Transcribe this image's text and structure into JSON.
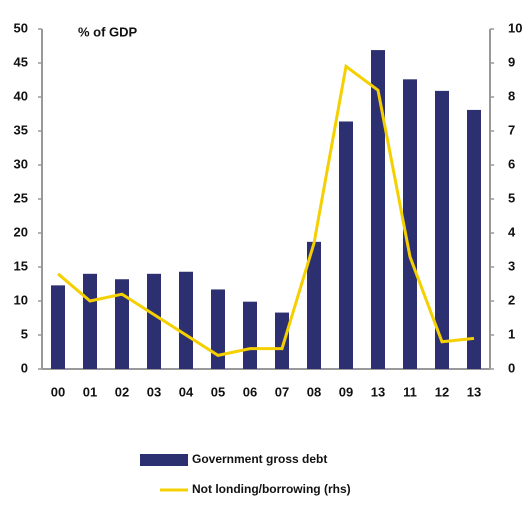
{
  "chart_data": {
    "type": "bar_line",
    "y_label": "% of GDP",
    "categories": [
      "00",
      "01",
      "02",
      "03",
      "04",
      "05",
      "06",
      "07",
      "08",
      "09",
      "13",
      "11",
      "12",
      "13"
    ],
    "series": [
      {
        "name": "Government gross debt",
        "type": "bar",
        "color": "#2d3070",
        "values": [
          12.3,
          14,
          13.2,
          14,
          14.3,
          11.7,
          9.9,
          8.3,
          18.7,
          36.4,
          46.9,
          42.6,
          40.9,
          38.1
        ]
      },
      {
        "name": "Not londing/borrowing (rhs)",
        "type": "line",
        "axis": "y2",
        "color": "#f5d000",
        "values": [
          2.8,
          2.0,
          2.2,
          1.6,
          1.0,
          0.4,
          0.6,
          0.6,
          3.7,
          8.9,
          8.2,
          3.3,
          0.8,
          0.9
        ]
      }
    ],
    "ylim": [
      0,
      50
    ],
    "yticks": [
      0,
      5,
      10,
      15,
      20,
      25,
      30,
      35,
      40,
      45,
      50
    ],
    "y2lim": [
      0,
      10
    ],
    "y2ticks": [
      0,
      1,
      2,
      3,
      4,
      5,
      6,
      7,
      8,
      9,
      10
    ],
    "grid": false
  }
}
